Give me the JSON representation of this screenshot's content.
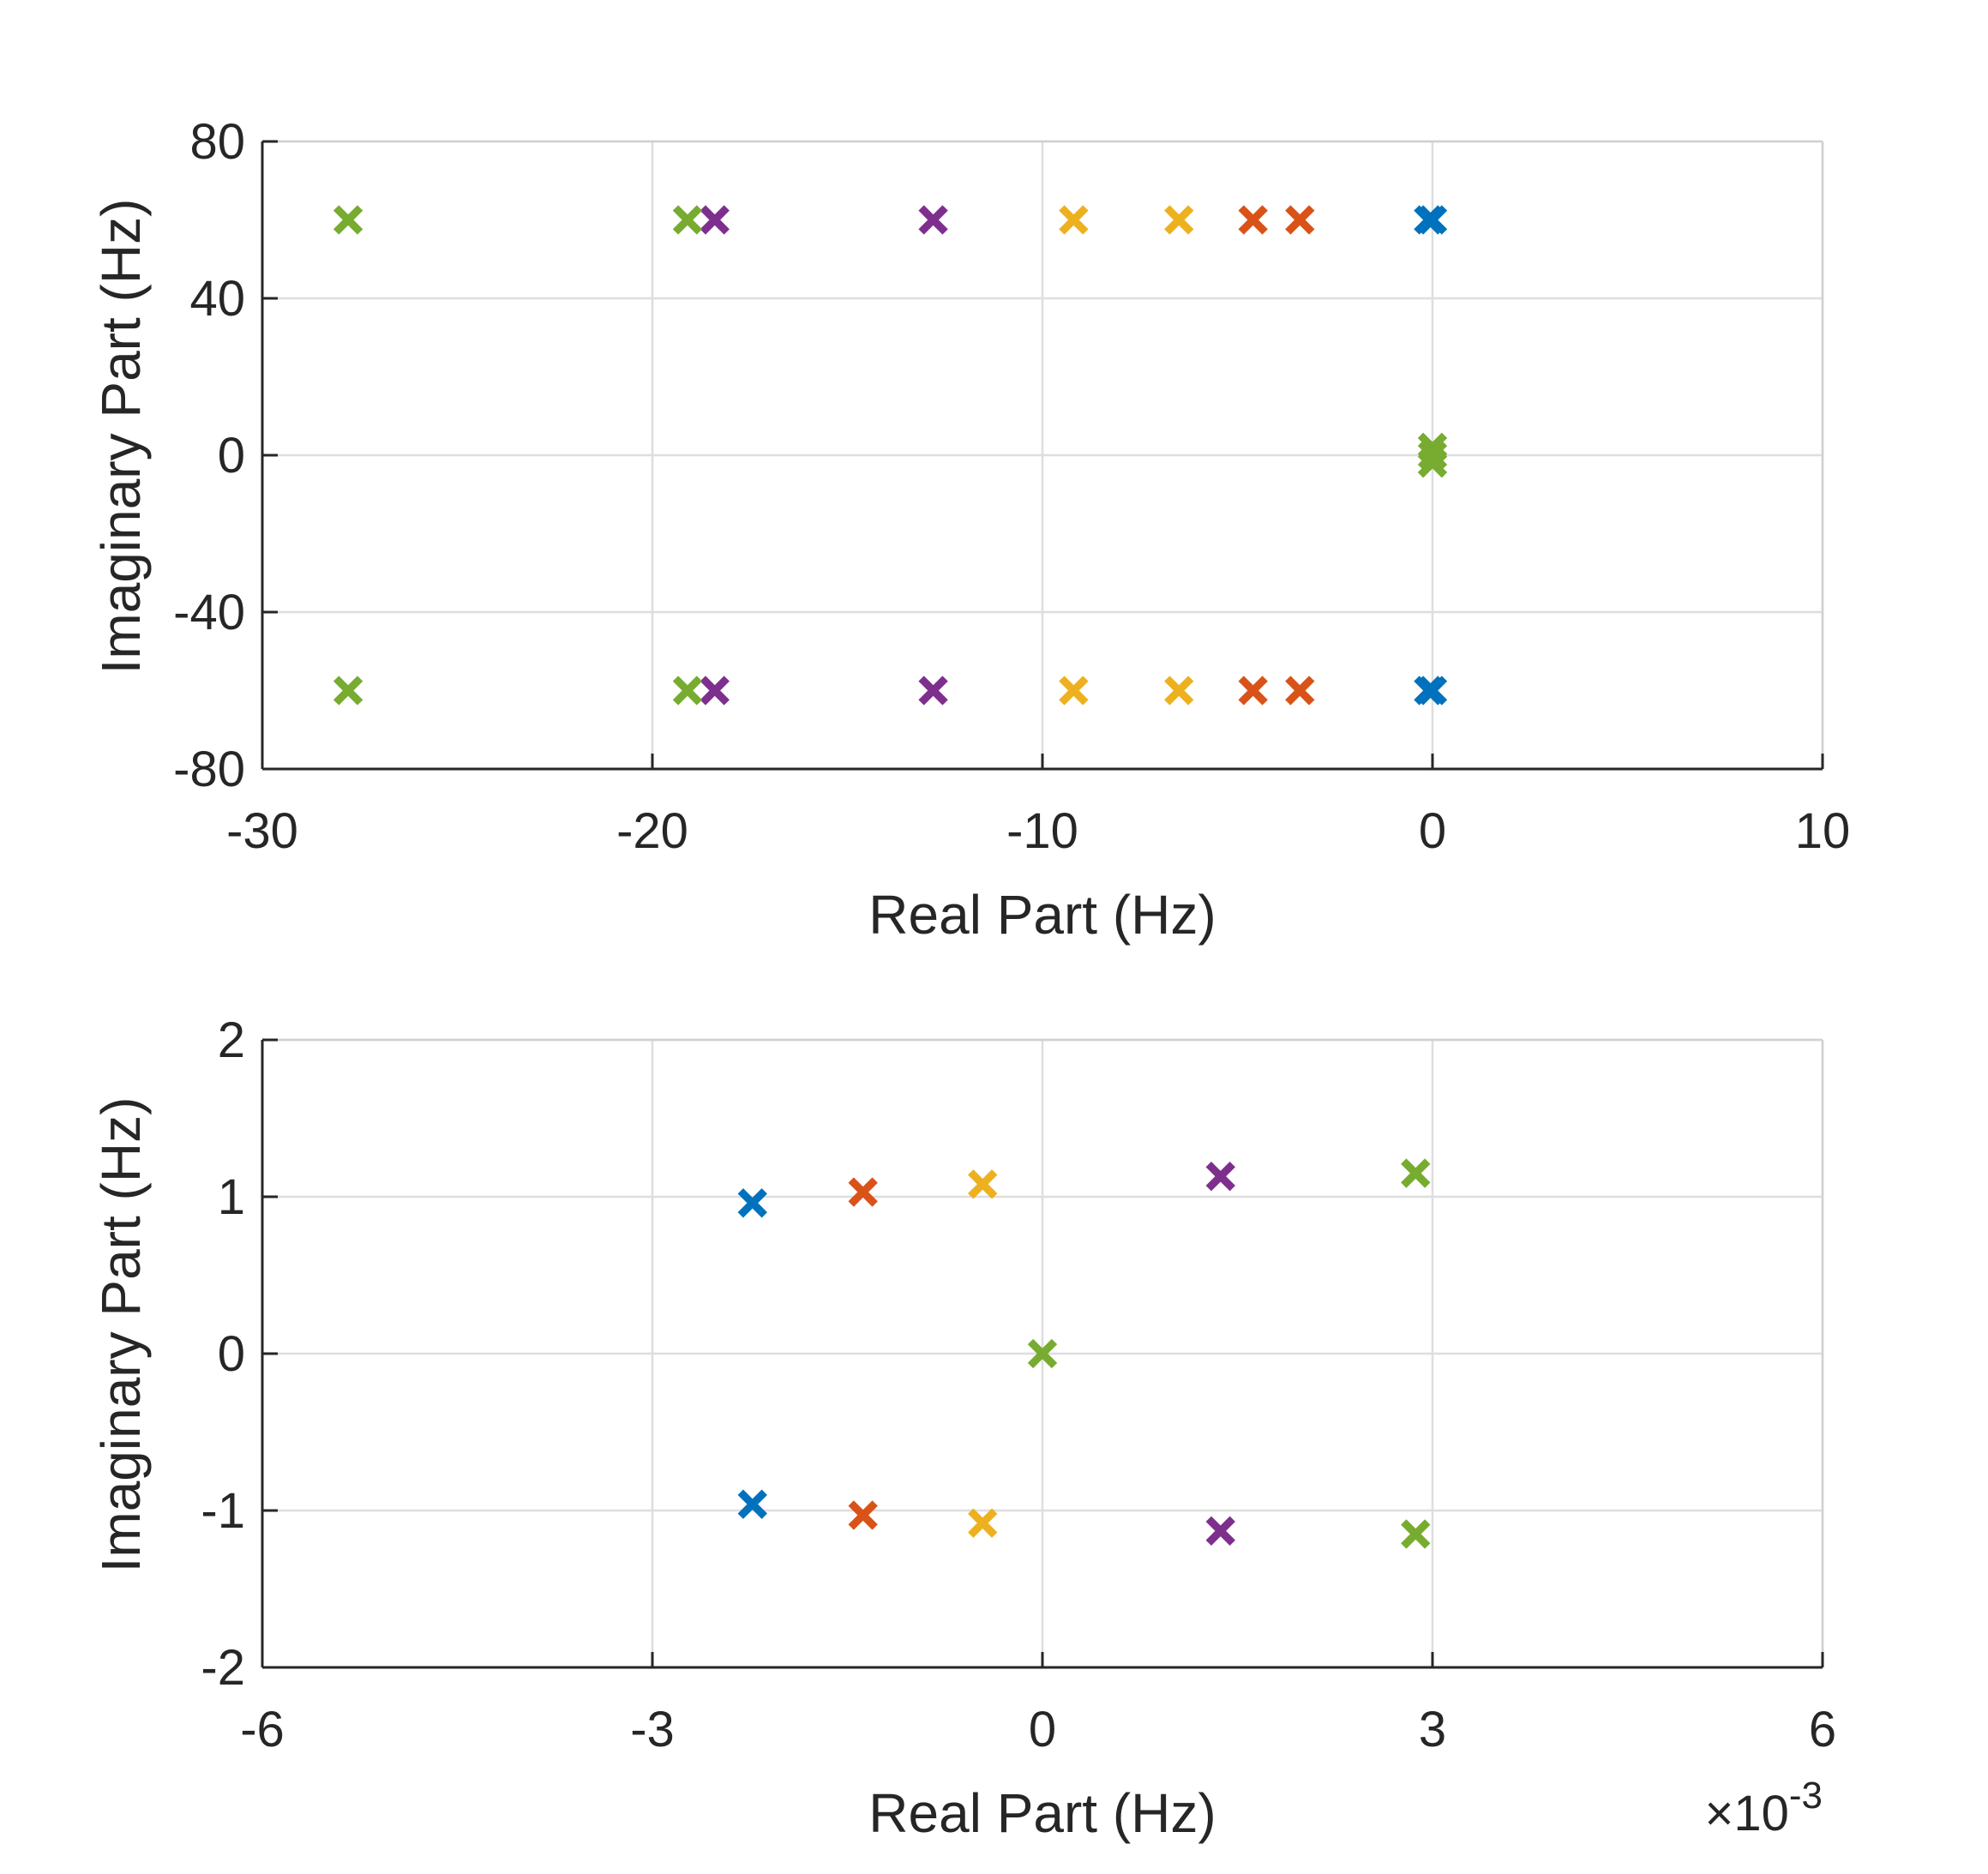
{
  "chart_data": [
    {
      "type": "scatter",
      "marker": "x",
      "xlabel": "Real Part (Hz)",
      "ylabel": "Imaginary Part (Hz)",
      "xlim": [
        -30,
        10
      ],
      "ylim": [
        -80,
        80
      ],
      "xticks": [
        -30,
        -20,
        -10,
        0,
        10
      ],
      "yticks": [
        -80,
        -40,
        0,
        40,
        80
      ],
      "xtick_labels": [
        "-30",
        "-20",
        "-10",
        "0",
        "10"
      ],
      "ytick_labels": [
        "-80",
        "-40",
        "0",
        "40",
        "80"
      ],
      "grid": true,
      "series": [
        {
          "color": "#0072BD",
          "points": [
            [
              0,
              60
            ],
            [
              -0.1,
              60
            ],
            [
              0,
              -60
            ],
            [
              -0.1,
              -60
            ]
          ]
        },
        {
          "color": "#D95319",
          "points": [
            [
              -3.4,
              60
            ],
            [
              -4.6,
              60
            ],
            [
              -3.4,
              -60
            ],
            [
              -4.6,
              -60
            ]
          ]
        },
        {
          "color": "#EDB120",
          "points": [
            [
              -6.5,
              60
            ],
            [
              -9.2,
              60
            ],
            [
              -6.5,
              -60
            ],
            [
              -9.2,
              -60
            ]
          ]
        },
        {
          "color": "#7E2F8E",
          "points": [
            [
              -12.8,
              60
            ],
            [
              -18.4,
              60
            ],
            [
              -12.8,
              -60
            ],
            [
              -18.4,
              -60
            ]
          ]
        },
        {
          "color": "#77AC30",
          "points": [
            [
              -19.1,
              60
            ],
            [
              -27.8,
              60
            ],
            [
              -19.1,
              -60
            ],
            [
              -27.8,
              -60
            ],
            [
              0,
              2
            ],
            [
              0,
              0
            ],
            [
              0,
              -2
            ]
          ]
        }
      ]
    },
    {
      "type": "scatter",
      "marker": "x",
      "xlabel": "Real Part (Hz)",
      "ylabel": "Imaginary Part (Hz)",
      "x_exponent_label": "×10",
      "x_exponent": "-3",
      "xlim": [
        -6,
        6
      ],
      "ylim": [
        -2,
        2
      ],
      "xticks": [
        -6,
        -3,
        0,
        3,
        6
      ],
      "yticks": [
        -2,
        -1,
        0,
        1,
        2
      ],
      "xtick_labels": [
        "-6",
        "-3",
        "0",
        "3",
        "6"
      ],
      "ytick_labels": [
        "-2",
        "-1",
        "0",
        "1",
        "2"
      ],
      "grid": true,
      "series": [
        {
          "color": "#0072BD",
          "points": [
            [
              -2.23,
              0.96
            ],
            [
              -2.23,
              -0.96
            ]
          ]
        },
        {
          "color": "#D95319",
          "points": [
            [
              -1.38,
              1.03
            ],
            [
              -1.38,
              -1.03
            ]
          ]
        },
        {
          "color": "#EDB120",
          "points": [
            [
              -0.46,
              1.08
            ],
            [
              -0.46,
              -1.08
            ]
          ]
        },
        {
          "color": "#7E2F8E",
          "points": [
            [
              1.37,
              1.13
            ],
            [
              1.37,
              -1.13
            ]
          ]
        },
        {
          "color": "#77AC30",
          "points": [
            [
              2.87,
              1.15
            ],
            [
              2.87,
              -1.15
            ],
            [
              0.0,
              0.0
            ]
          ]
        }
      ]
    }
  ]
}
